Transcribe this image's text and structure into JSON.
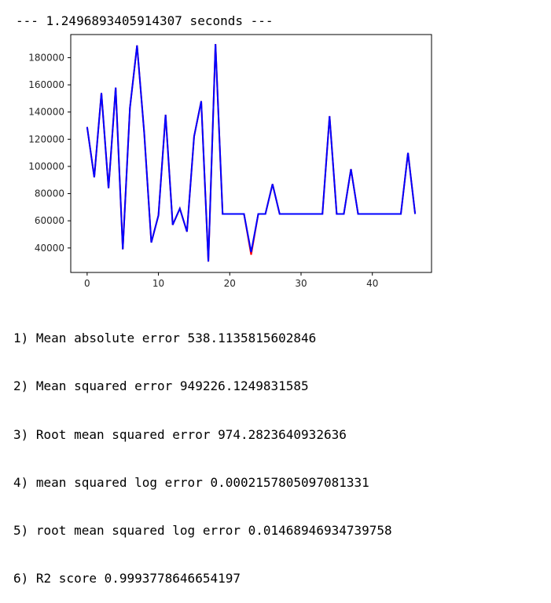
{
  "output": {
    "timing": "--- 1.2496893405914307 seconds ---",
    "metrics": [
      "1) Mean absolute error 538.1135815602846",
      "2) Mean squared error 949226.1249831585",
      "3) Root mean squared error 974.2823640932636",
      "4) mean squared log error 0.0002157805097081331",
      "5) root mean squared log error 0.01468946934739758",
      "6) R2 score 0.9993778646654197"
    ]
  },
  "colors": {
    "actual": "#ff0000",
    "predicted": "#0000ff",
    "axes": "#000000",
    "text": "#000000"
  },
  "chart_data": {
    "type": "line",
    "title": "",
    "xlabel": "",
    "ylabel": "",
    "xlim": [
      -2.3,
      48.3
    ],
    "ylim": [
      22000,
      197000
    ],
    "xticks": [
      0,
      10,
      20,
      30,
      40
    ],
    "yticks": [
      40000,
      60000,
      80000,
      100000,
      120000,
      140000,
      160000,
      180000
    ],
    "grid": false,
    "legend": "none",
    "x": [
      0,
      1,
      2,
      3,
      4,
      5,
      6,
      7,
      8,
      9,
      10,
      11,
      12,
      13,
      14,
      15,
      16,
      17,
      18,
      19,
      20,
      21,
      22,
      23,
      24,
      25,
      26,
      27,
      28,
      29,
      30,
      31,
      32,
      33,
      34,
      35,
      36,
      37,
      38,
      39,
      40,
      41,
      42,
      43,
      44,
      45,
      46
    ],
    "series": [
      {
        "color": "#ff0000",
        "values": [
          129000,
          92000,
          154000,
          84000,
          158000,
          39000,
          143000,
          189000,
          125000,
          44000,
          64000,
          138000,
          57000,
          69000,
          52000,
          122000,
          148000,
          30000,
          190000,
          65000,
          65000,
          65000,
          65000,
          35000,
          65000,
          65000,
          87000,
          65000,
          65000,
          65000,
          65000,
          65000,
          65000,
          65000,
          137000,
          65000,
          65000,
          98000,
          65000,
          65000,
          65000,
          65000,
          65000,
          65000,
          65000,
          110000,
          65000
        ]
      },
      {
        "color": "#0000ff",
        "values": [
          129000,
          92000,
          154000,
          84000,
          158000,
          39000,
          143000,
          189000,
          125000,
          44000,
          64000,
          138000,
          57000,
          69000,
          52000,
          122000,
          148000,
          30000,
          190000,
          65000,
          65000,
          65000,
          65000,
          37000,
          65000,
          65000,
          87000,
          65000,
          65000,
          65000,
          65000,
          65000,
          65000,
          65000,
          137000,
          65000,
          65000,
          98000,
          65000,
          65000,
          65000,
          65000,
          65000,
          65000,
          65000,
          110000,
          65000
        ]
      }
    ]
  }
}
